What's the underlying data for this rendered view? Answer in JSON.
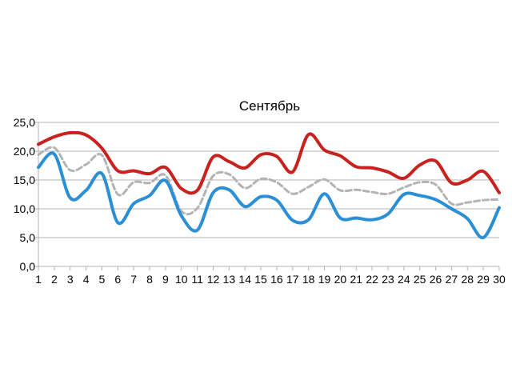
{
  "chart_data": {
    "type": "line",
    "title": "Сентябрь",
    "xlabel": "",
    "ylabel": "",
    "categories": [
      "1",
      "2",
      "3",
      "4",
      "5",
      "6",
      "7",
      "8",
      "9",
      "10",
      "11",
      "12",
      "13",
      "14",
      "15",
      "16",
      "17",
      "18",
      "19",
      "20",
      "21",
      "22",
      "23",
      "24",
      "25",
      "26",
      "27",
      "28",
      "29",
      "30"
    ],
    "ylim": [
      0,
      25
    ],
    "yticks": [
      "0,0",
      "5,0",
      "10,0",
      "15,0",
      "20,0",
      "25,0"
    ],
    "ytick_values": [
      0,
      5,
      10,
      15,
      20,
      25
    ],
    "grid": true,
    "legend": "none",
    "series": [
      {
        "color": "#c9211e",
        "style": "solid",
        "values": [
          21.2,
          22.5,
          23.2,
          22.8,
          20.5,
          16.6,
          16.6,
          16.1,
          17.2,
          13.5,
          13.2,
          19.0,
          18.2,
          17.1,
          19.4,
          19.1,
          16.4,
          22.9,
          20.2,
          19.2,
          17.3,
          17.1,
          16.4,
          15.3,
          17.6,
          18.3,
          14.5,
          15.0,
          16.5,
          12.8
        ]
      },
      {
        "color": "#b3b3b3",
        "style": "dashed",
        "values": [
          19.4,
          20.6,
          16.7,
          17.7,
          19.3,
          12.5,
          14.6,
          14.5,
          15.8,
          9.6,
          10.1,
          15.7,
          16.0,
          13.6,
          15.2,
          14.6,
          12.6,
          13.8,
          15.1,
          13.2,
          13.3,
          12.9,
          12.6,
          13.7,
          14.6,
          14.2,
          10.9,
          11.1,
          11.5,
          11.6
        ]
      },
      {
        "color": "#2a8fd5",
        "style": "solid",
        "values": [
          17.2,
          19.5,
          11.9,
          13.2,
          16.1,
          7.6,
          10.9,
          12.3,
          14.9,
          8.8,
          6.3,
          12.8,
          13.3,
          10.4,
          12.1,
          11.5,
          8.0,
          8.1,
          12.6,
          8.4,
          8.4,
          8.1,
          9.1,
          12.5,
          12.3,
          11.6,
          10.0,
          8.3,
          5.0,
          10.2
        ]
      }
    ]
  }
}
